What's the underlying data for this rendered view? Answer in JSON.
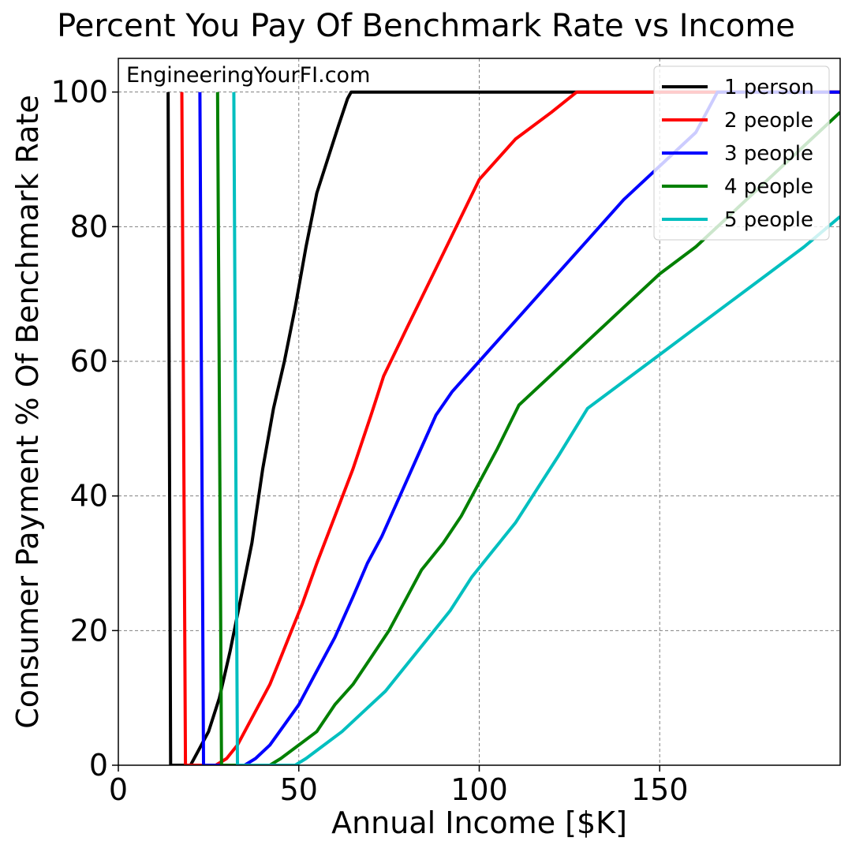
{
  "chart_data": {
    "type": "line",
    "title": "Percent You Pay Of Benchmark Rate vs Income",
    "xlabel": "Annual Income [$K]",
    "ylabel": "Consumer Payment % Of Benchmark Rate",
    "watermark": "EngineeringYourFI.com",
    "xlim": [
      0,
      200
    ],
    "ylim": [
      0,
      105
    ],
    "xticks": [
      0,
      50,
      100,
      150
    ],
    "yticks": [
      0,
      20,
      40,
      60,
      80,
      100
    ],
    "grid": true,
    "legend_position": "top-right",
    "series": [
      {
        "name": "1 person",
        "color": "#000000",
        "points": [
          [
            13.8,
            100
          ],
          [
            14.5,
            0
          ],
          [
            20,
            0
          ],
          [
            22,
            2
          ],
          [
            25,
            5
          ],
          [
            28,
            10
          ],
          [
            31,
            17
          ],
          [
            34,
            25
          ],
          [
            37,
            33
          ],
          [
            40,
            44
          ],
          [
            43,
            53
          ],
          [
            46,
            60
          ],
          [
            49,
            68
          ],
          [
            52,
            77
          ],
          [
            55,
            85
          ],
          [
            58,
            90
          ],
          [
            61,
            95
          ],
          [
            63.5,
            99
          ],
          [
            64.5,
            100
          ],
          [
            200,
            100
          ]
        ]
      },
      {
        "name": "2 people",
        "color": "#ff0000",
        "points": [
          [
            17.6,
            100
          ],
          [
            18.6,
            0
          ],
          [
            27,
            0
          ],
          [
            30,
            1
          ],
          [
            33,
            3
          ],
          [
            36,
            6
          ],
          [
            39,
            9
          ],
          [
            42,
            12
          ],
          [
            45,
            16
          ],
          [
            48,
            20
          ],
          [
            51,
            24
          ],
          [
            55,
            30
          ],
          [
            60,
            37
          ],
          [
            65,
            44
          ],
          [
            70,
            52
          ],
          [
            73.5,
            57.8
          ],
          [
            80,
            65
          ],
          [
            90,
            76
          ],
          [
            100,
            87
          ],
          [
            110,
            93
          ],
          [
            120,
            97
          ],
          [
            127,
            100
          ],
          [
            200,
            100
          ]
        ]
      },
      {
        "name": "3 people",
        "color": "#0000ff",
        "points": [
          [
            22.6,
            100
          ],
          [
            23.6,
            0
          ],
          [
            35,
            0
          ],
          [
            38,
            1
          ],
          [
            42,
            3
          ],
          [
            46,
            6
          ],
          [
            50,
            9
          ],
          [
            55,
            14
          ],
          [
            60,
            19
          ],
          [
            65,
            25
          ],
          [
            69,
            30
          ],
          [
            73,
            34
          ],
          [
            78,
            40
          ],
          [
            83,
            46
          ],
          [
            88,
            52
          ],
          [
            92.5,
            55.5
          ],
          [
            100,
            60
          ],
          [
            110,
            66
          ],
          [
            120,
            72
          ],
          [
            130,
            78
          ],
          [
            140,
            84
          ],
          [
            150,
            89
          ],
          [
            160,
            94
          ],
          [
            166,
            100
          ],
          [
            200,
            100
          ]
        ]
      },
      {
        "name": "4 people",
        "color": "#008000",
        "points": [
          [
            27.5,
            100
          ],
          [
            28.6,
            0
          ],
          [
            42,
            0
          ],
          [
            45,
            1
          ],
          [
            50,
            3
          ],
          [
            55,
            5
          ],
          [
            60,
            9
          ],
          [
            65,
            12
          ],
          [
            70,
            16
          ],
          [
            75,
            20
          ],
          [
            80,
            25
          ],
          [
            84,
            29
          ],
          [
            90,
            33
          ],
          [
            95,
            37
          ],
          [
            100,
            42
          ],
          [
            105,
            47
          ],
          [
            111,
            53.5
          ],
          [
            120,
            58
          ],
          [
            130,
            63
          ],
          [
            140,
            68
          ],
          [
            150,
            73
          ],
          [
            160,
            77
          ],
          [
            170,
            82
          ],
          [
            180,
            87
          ],
          [
            190,
            92
          ],
          [
            200,
            97
          ]
        ]
      },
      {
        "name": "5 people",
        "color": "#00bfbf",
        "points": [
          [
            32,
            100
          ],
          [
            33,
            0
          ],
          [
            49,
            0
          ],
          [
            52,
            1
          ],
          [
            57,
            3
          ],
          [
            62,
            5
          ],
          [
            68,
            8
          ],
          [
            74,
            11
          ],
          [
            80,
            15
          ],
          [
            86,
            19
          ],
          [
            92,
            23
          ],
          [
            98,
            28
          ],
          [
            104,
            32
          ],
          [
            110,
            36
          ],
          [
            116,
            41
          ],
          [
            122,
            46
          ],
          [
            130,
            53
          ],
          [
            140,
            57
          ],
          [
            150,
            61
          ],
          [
            160,
            65
          ],
          [
            170,
            69
          ],
          [
            180,
            73
          ],
          [
            190,
            77
          ],
          [
            200,
            81.5
          ]
        ]
      }
    ]
  }
}
